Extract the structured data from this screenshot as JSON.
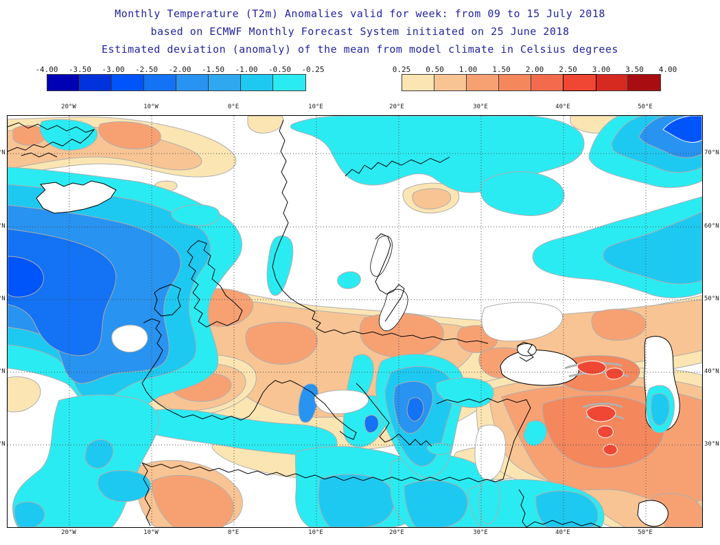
{
  "title": {
    "line1": "Monthly Temperature (T2m) Anomalies valid for week: from 09 to 15 July 2018",
    "line2": "based on ECMWF Monthly Forecast System initiated on 25 June 2018",
    "line3": "Estimated deviation (anomaly) of the mean from model climate in Celsius degrees",
    "color": "#22229e"
  },
  "legend": {
    "negative": {
      "tick_labels": [
        "-4.00",
        "-3.50",
        "-3.00",
        "-2.50",
        "-2.00",
        "-1.50",
        "-1.00",
        "-0.50",
        "-0.25"
      ],
      "colors": [
        "#0000B4",
        "#0032DC",
        "#0055FA",
        "#1472F4",
        "#2893F0",
        "#2FA8EF",
        "#1EC9F1",
        "#2BEBF2"
      ]
    },
    "positive": {
      "tick_labels": [
        "0.25",
        "0.50",
        "1.00",
        "1.50",
        "2.00",
        "2.50",
        "3.00",
        "3.50",
        "4.00"
      ],
      "colors": [
        "#FBE5B2",
        "#F8C493",
        "#F7A173",
        "#F4875C",
        "#F26B4C",
        "#EF4733",
        "#D62920",
        "#A80D12"
      ],
      "bold_cell_index": 5
    }
  },
  "map": {
    "lon_labels": [
      "20°W",
      "10°W",
      "0°E",
      "10°E",
      "20°E",
      "30°E",
      "40°E",
      "50°E"
    ],
    "lat_labels": [
      "70°N",
      "60°N",
      "50°N",
      "40°N",
      "30°N"
    ],
    "land_sea_no_anomaly_color": "#FFFFFF",
    "contour_line_color": "#ADADAD",
    "coastline_color": "#000000"
  },
  "chart_data": {
    "type": "heatmap",
    "variable": "Monthly Temperature (T2m) Anomalies",
    "units": "Celsius degrees",
    "valid_week": "from 09 to 15 July 2018",
    "model": "ECMWF Monthly Forecast System",
    "initialized": "25 June 2018",
    "scale_breakpoints_celsius": [
      -4.0,
      -3.5,
      -3.0,
      -2.5,
      -2.0,
      -1.5,
      -1.0,
      -0.5,
      -0.25,
      0.25,
      0.5,
      1.0,
      1.5,
      2.0,
      2.5,
      3.0,
      3.5,
      4.0
    ],
    "neutral_band": "-0.25 to 0.25 rendered white",
    "x_axis_ticks": [
      "20°W",
      "10°W",
      "0°E",
      "10°E",
      "20°E",
      "30°E",
      "40°E",
      "50°E"
    ],
    "y_axis_ticks": [
      "70°N",
      "60°N",
      "50°N",
      "40°N",
      "30°N"
    ]
  }
}
